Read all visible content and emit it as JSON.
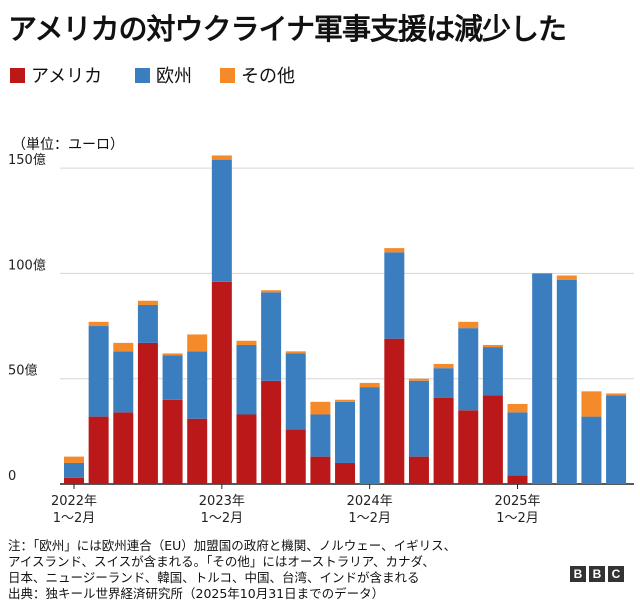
{
  "title": "アメリカの対ウクライナ軍事支援は減少した",
  "legend": [
    {
      "label": "アメリカ",
      "color": "#bb1919"
    },
    {
      "label": "欧州",
      "color": "#3a7ec0"
    },
    {
      "label": "その他",
      "color": "#f58a2b"
    }
  ],
  "unit_label": "（単位：ユーロ）",
  "chart_data": {
    "type": "bar",
    "stacked": true,
    "categories": [
      "2022-01",
      "2022-03",
      "2022-05",
      "2022-07",
      "2022-09",
      "2022-11",
      "2023-01",
      "2023-03",
      "2023-05",
      "2023-07",
      "2023-09",
      "2023-11",
      "2024-01",
      "2024-03",
      "2024-05",
      "2024-07",
      "2024-09",
      "2024-11",
      "2025-01",
      "2025-03",
      "2025-05",
      "2025-07",
      "2025-09"
    ],
    "x_tick_labels": [
      {
        "index": 0,
        "year": "2022年",
        "months": "1～2月"
      },
      {
        "index": 6,
        "year": "2023年",
        "months": "1～2月"
      },
      {
        "index": 12,
        "year": "2024年",
        "months": "1～2月"
      },
      {
        "index": 18,
        "year": "2025年",
        "months": "1～2月"
      }
    ],
    "series": [
      {
        "name": "アメリカ",
        "color": "#bb1919",
        "values": [
          3,
          32,
          34,
          67,
          40,
          31,
          96,
          33,
          49,
          26,
          13,
          10,
          0,
          69,
          13,
          41,
          35,
          42,
          4,
          0,
          0,
          0,
          0
        ]
      },
      {
        "name": "欧州",
        "color": "#3a7ec0",
        "values": [
          7,
          43,
          29,
          18,
          21,
          32,
          58,
          33,
          42,
          36,
          20,
          29,
          46,
          41,
          36,
          14,
          39,
          23,
          30,
          100,
          97,
          32,
          42
        ]
      },
      {
        "name": "その他",
        "color": "#f58a2b",
        "values": [
          3,
          2,
          4,
          2,
          1,
          8,
          2,
          2,
          1,
          1,
          6,
          1,
          2,
          2,
          1,
          2,
          3,
          1,
          4,
          0,
          2,
          12,
          1
        ]
      }
    ],
    "ylim": [
      0,
      160
    ],
    "yticks": [
      0,
      50,
      100,
      150
    ],
    "ytick_labels": [
      "0",
      "50億",
      "100億",
      "150億"
    ],
    "ylabel": "（単位：ユーロ）",
    "grid": true
  },
  "footnote": [
    "注：「欧州」には欧州連合（EU）加盟国の政府と機関、ノルウェー、イギリス、",
    "アイスランド、スイスが含まれる。「その他」にはオーストラリア、カナダ、",
    "日本、ニュージーランド、韓国、トルコ、中国、台湾、インドが含まれる",
    "出典：独キール世界経済研究所（2025年10月31日までのデータ）"
  ],
  "logo": "BBC"
}
